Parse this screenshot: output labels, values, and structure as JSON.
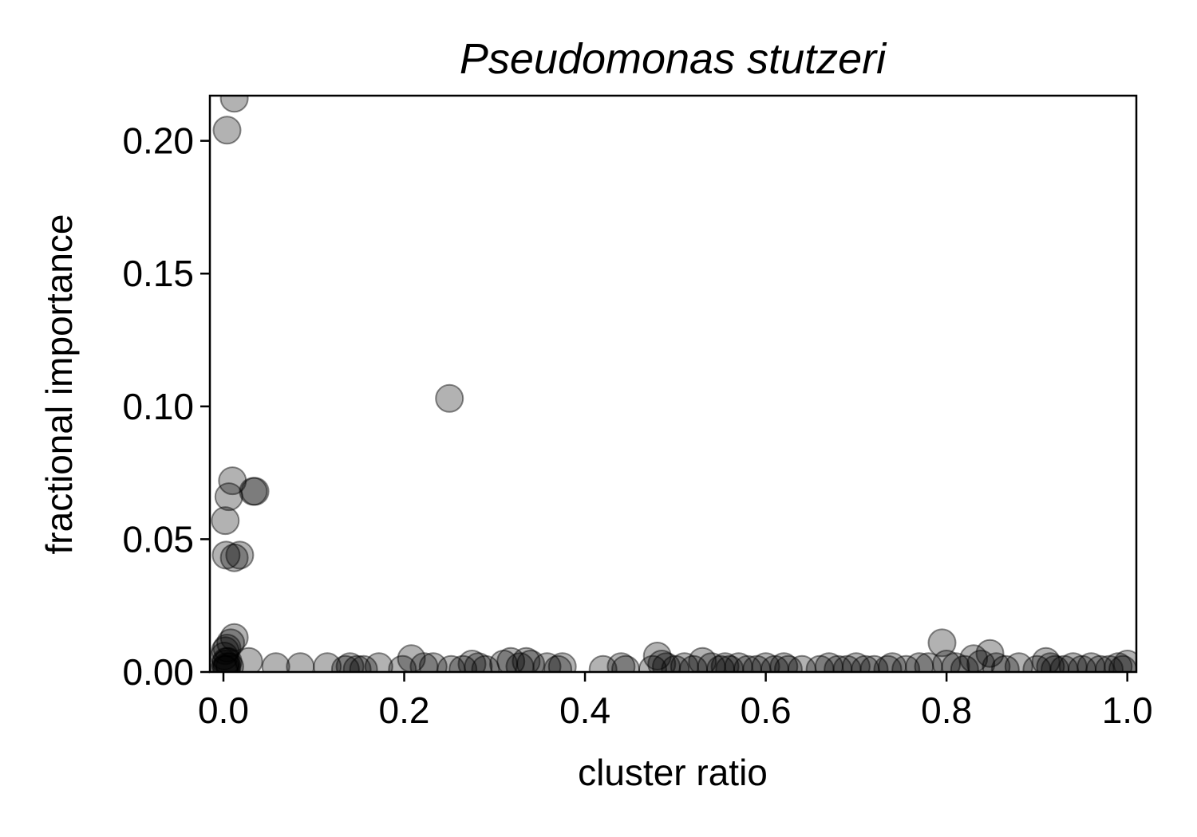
{
  "chart_data": {
    "type": "scatter",
    "title": "Pseudomonas stutzeri",
    "xlabel": "cluster ratio",
    "ylabel": "fractional importance",
    "xlim": [
      -0.015,
      1.01
    ],
    "ylim": [
      0,
      0.217
    ],
    "xticks": [
      0.0,
      0.2,
      0.4,
      0.6,
      0.8,
      1.0
    ],
    "xtick_labels": [
      "0.0",
      "0.2",
      "0.4",
      "0.6",
      "0.8",
      "1.0"
    ],
    "yticks": [
      0.0,
      0.05,
      0.1,
      0.15,
      0.2
    ],
    "ytick_labels": [
      "0.00",
      "0.05",
      "0.10",
      "0.15",
      "0.20"
    ],
    "grid": false,
    "legend": "none",
    "marker_color": "#000000",
    "marker_alpha": 0.3,
    "series": [
      {
        "x": [
          0.004,
          0.012,
          0.25,
          0.035,
          0.033,
          0.01,
          0.006,
          0.002,
          0.003,
          0.012,
          0.018,
          0.008,
          0.012,
          0.002,
          0.004,
          0.001,
          0.003,
          0.005,
          0.002,
          0.004,
          0.007,
          0.001,
          0.003,
          0.028,
          0.058,
          0.085,
          0.115,
          0.135,
          0.14,
          0.148,
          0.155,
          0.172,
          0.198,
          0.208,
          0.222,
          0.232,
          0.252,
          0.265,
          0.275,
          0.282,
          0.29,
          0.31,
          0.318,
          0.328,
          0.335,
          0.34,
          0.358,
          0.37,
          0.375,
          0.42,
          0.44,
          0.445,
          0.475,
          0.48,
          0.485,
          0.49,
          0.5,
          0.51,
          0.52,
          0.53,
          0.54,
          0.55,
          0.555,
          0.56,
          0.57,
          0.58,
          0.59,
          0.6,
          0.61,
          0.62,
          0.625,
          0.64,
          0.66,
          0.67,
          0.68,
          0.69,
          0.7,
          0.71,
          0.72,
          0.735,
          0.74,
          0.755,
          0.77,
          0.78,
          0.795,
          0.8,
          0.81,
          0.82,
          0.83,
          0.838,
          0.848,
          0.855,
          0.865,
          0.88,
          0.9,
          0.91,
          0.915,
          0.92,
          0.93,
          0.94,
          0.95,
          0.96,
          0.97,
          0.98,
          0.99,
          0.995,
          1.0
        ],
        "y": [
          0.204,
          0.216,
          0.103,
          0.068,
          0.068,
          0.072,
          0.066,
          0.057,
          0.044,
          0.043,
          0.044,
          0.011,
          0.013,
          0.008,
          0.009,
          0.006,
          0.004,
          0.004,
          0.003,
          0.002,
          0.002,
          0.001,
          0.001,
          0.004,
          0.002,
          0.002,
          0.002,
          0.001,
          0.002,
          0.001,
          0.001,
          0.002,
          0.001,
          0.005,
          0.002,
          0.002,
          0.001,
          0.001,
          0.003,
          0.002,
          0.001,
          0.003,
          0.004,
          0.002,
          0.004,
          0.003,
          0.002,
          0.001,
          0.002,
          0.001,
          0.002,
          0.001,
          0.001,
          0.006,
          0.003,
          0.002,
          0.001,
          0.002,
          0.001,
          0.004,
          0.002,
          0.001,
          0.002,
          0.001,
          0.002,
          0.001,
          0.001,
          0.002,
          0.001,
          0.002,
          0.001,
          0.001,
          0.001,
          0.002,
          0.001,
          0.001,
          0.002,
          0.001,
          0.001,
          0.001,
          0.002,
          0.001,
          0.002,
          0.002,
          0.011,
          0.003,
          0.002,
          0.001,
          0.005,
          0.003,
          0.007,
          0.002,
          0.001,
          0.002,
          0.001,
          0.004,
          0.002,
          0.001,
          0.001,
          0.002,
          0.001,
          0.002,
          0.001,
          0.001,
          0.002,
          0.001,
          0.003
        ]
      }
    ]
  }
}
